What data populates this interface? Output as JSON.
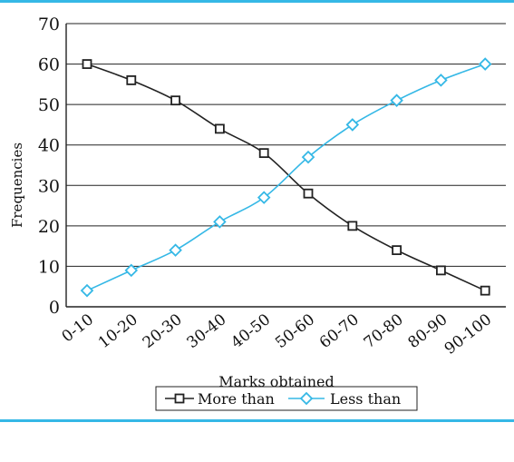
{
  "chart_data": {
    "type": "line",
    "title": "",
    "xlabel": "Marks obtained",
    "ylabel": "Frequencies",
    "categories": [
      "0-10",
      "10-20",
      "20-30",
      "30-40",
      "40-50",
      "50-60",
      "60-70",
      "70-80",
      "80-90",
      "90-100"
    ],
    "ylim": [
      0,
      70
    ],
    "yticks": [
      0,
      10,
      20,
      30,
      40,
      50,
      60,
      70
    ],
    "grid": "horizontal",
    "legend_position": "bottom-center",
    "series": [
      {
        "name": "More than",
        "marker": "square",
        "color": "#222222",
        "values": [
          60,
          56,
          51,
          44,
          38,
          28,
          20,
          14,
          9,
          4
        ]
      },
      {
        "name": "Less than",
        "marker": "diamond",
        "color": "#35b8e6",
        "values": [
          4,
          9,
          14,
          21,
          27,
          37,
          45,
          51,
          56,
          60
        ]
      }
    ]
  }
}
